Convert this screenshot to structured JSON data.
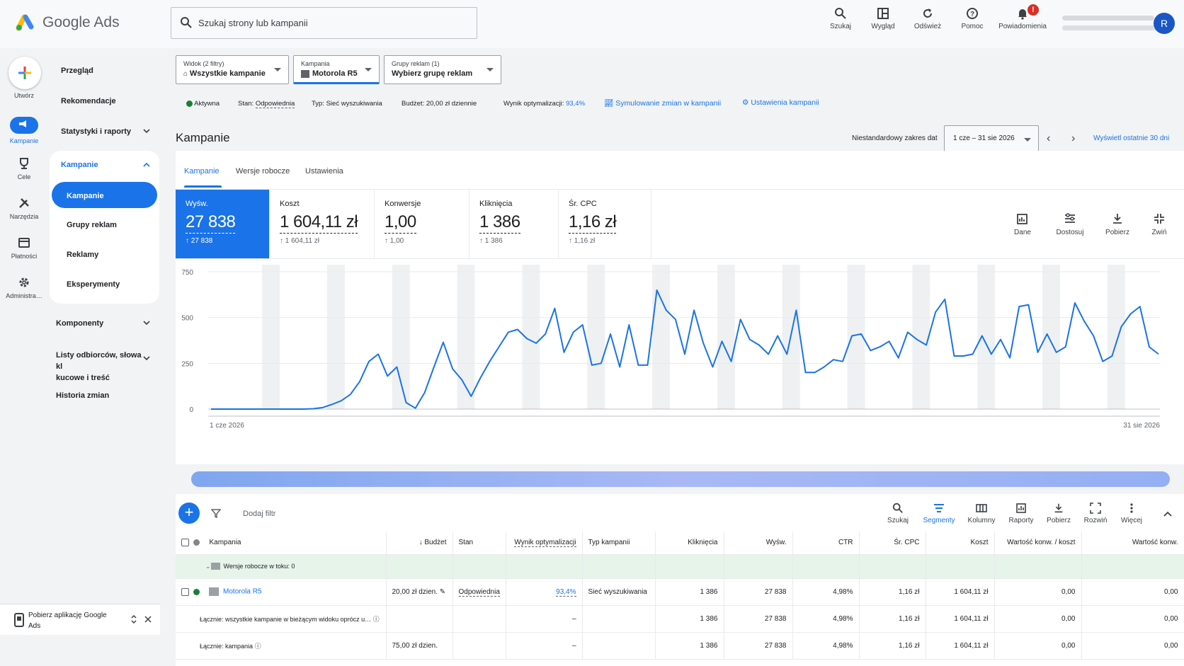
{
  "app": {
    "name": "Google Ads",
    "account_initial": "R"
  },
  "search": {
    "placeholder": "Szukaj strony lub kampanii"
  },
  "top_actions": [
    {
      "label": "Szukaj",
      "icon": "search-icon"
    },
    {
      "label": "Wygląd",
      "icon": "appearance-icon"
    },
    {
      "label": "Odśwież",
      "icon": "refresh-icon"
    },
    {
      "label": "Pomoc",
      "icon": "help-icon"
    },
    {
      "label": "Powiadomienia",
      "icon": "bell-icon",
      "badge": "!"
    }
  ],
  "rail": [
    {
      "label": "Utwórz",
      "icon": "plus-icon"
    },
    {
      "label": "Kampanie",
      "icon": "campaigns-icon"
    },
    {
      "label": "Cele",
      "icon": "trophy-icon"
    },
    {
      "label": "Narzędzia",
      "icon": "tools-icon"
    },
    {
      "label": "Płatności",
      "icon": "card-icon"
    },
    {
      "label": "Administra…",
      "icon": "gear-icon"
    }
  ],
  "nav": {
    "overview": "Przegląd",
    "recommendations": "Rekomendacje",
    "stats": "Statystyki i raporty",
    "campaigns_group": "Kampanie",
    "campaigns": "Kampanie",
    "ad_groups": "Grupy reklam",
    "ads": "Reklamy",
    "experiments": "Eksperymenty",
    "components": "Komponenty",
    "audiences_line1": "Listy odbiorców, słowa kl",
    "audiences_line2": "kucowe i treść",
    "history": "Historia zmian",
    "app_line1": "Pobierz aplikację Google",
    "app_line2": "Ads"
  },
  "filters": {
    "view_label": "Widok (2 filtry)",
    "view_value": "Wszystkie kampanie",
    "campaign_label": "Kampania",
    "campaign_value": "Motorola R5",
    "adgroup_label": "Grupy reklam (1)",
    "adgroup_value": "Wybierz grupę reklam"
  },
  "status": {
    "active": "Aktywna",
    "state_label": "Stan:",
    "state_value": "Odpowiednia",
    "type": "Typ: Sieć wyszukiwania",
    "budget": "Budżet: 20,00 zł dziennie",
    "opt_label": "Wynik optymalizacji:",
    "opt_value": "93,4%",
    "simulate": "Symulowanie zmian w kampanii",
    "settings": "Ustawienia kampanii"
  },
  "page": {
    "title": "Kampanie",
    "date_label": "Niestandardowy zakres dat",
    "date_value": "1 cze – 31 sie 2026",
    "last30": "Wyświetl ostatnie 30 dni"
  },
  "tabs": [
    "Kampanie",
    "Wersje robocze",
    "Ustawienia"
  ],
  "metrics": [
    {
      "label": "Wyśw.",
      "value": "27 838",
      "delta": "↑ 27 838",
      "selected": true
    },
    {
      "label": "Koszt",
      "value": "1 604,11 zł",
      "delta": "↑ 1 604,11 zł",
      "selected": false
    },
    {
      "label": "Konwersje",
      "value": "1,00",
      "delta": "↑ 1,00",
      "selected": false
    },
    {
      "label": "Kliknięcia",
      "value": "1 386",
      "delta": "↑ 1 386",
      "selected": false
    },
    {
      "label": "Śr. CPC",
      "value": "1,16 zł",
      "delta": "↑ 1,16 zł",
      "selected": false
    }
  ],
  "chart_tools": [
    {
      "label": "Dane",
      "icon": "chart-add-icon"
    },
    {
      "label": "Dostosuj",
      "icon": "tune-icon"
    },
    {
      "label": "Pobierz",
      "icon": "download-icon"
    },
    {
      "label": "Zwiń",
      "icon": "collapse-icon"
    }
  ],
  "chart_data": {
    "type": "line",
    "series": [
      {
        "name": "Wyśw.",
        "color": "#1a73e8",
        "values": [
          0,
          0,
          0,
          0,
          0,
          0,
          0,
          0,
          0,
          0,
          0,
          2,
          8,
          25,
          45,
          80,
          150,
          260,
          300,
          180,
          230,
          35,
          5,
          90,
          230,
          365,
          220,
          160,
          70,
          170,
          260,
          340,
          420,
          435,
          385,
          360,
          410,
          550,
          310,
          420,
          460,
          240,
          250,
          410,
          230,
          460,
          240,
          240,
          650,
          540,
          490,
          300,
          540,
          360,
          230,
          370,
          260,
          490,
          380,
          350,
          300,
          400,
          300,
          540,
          200,
          200,
          230,
          270,
          260,
          400,
          410,
          320,
          340,
          370,
          280,
          420,
          380,
          350,
          530,
          600,
          290,
          290,
          300,
          400,
          300,
          380,
          280,
          560,
          570,
          310,
          410,
          310,
          340,
          580,
          480,
          400,
          260,
          290,
          450,
          520,
          560,
          340,
          300
        ]
      }
    ],
    "x_start_label": "1 cze 2026",
    "x_end_label": "31 sie 2026",
    "y_ticks": [
      0,
      250,
      500,
      750
    ],
    "ylim": [
      0,
      750
    ],
    "grid": true,
    "weekend_bands": true
  },
  "table_toolbar": {
    "add_filter": "Dodaj filtr",
    "tools": [
      {
        "label": "Szukaj",
        "icon": "search-icon",
        "active": false
      },
      {
        "label": "Segmenty",
        "icon": "segments-icon",
        "active": true
      },
      {
        "label": "Kolumny",
        "icon": "columns-icon",
        "active": false
      },
      {
        "label": "Raporty",
        "icon": "reports-icon",
        "active": false
      },
      {
        "label": "Pobierz",
        "icon": "download-icon",
        "active": false
      },
      {
        "label": "Rozwiń",
        "icon": "expand-icon",
        "active": false
      },
      {
        "label": "Więcej",
        "icon": "more-icon",
        "active": false
      }
    ]
  },
  "table": {
    "headers": [
      "Kampania",
      "↓ Budżet",
      "Stan",
      "Wynik optymalizacji",
      "Typ kampanii",
      "Kliknięcia",
      "Wyśw.",
      "CTR",
      "Śr. CPC",
      "Koszt",
      "Wartość konw. / koszt",
      "Wartość konw."
    ],
    "draft_row": "Wersje robocze w toku: 0",
    "campaign_row": {
      "name": "Motorola R5",
      "budget": "20,00 zł dzien.",
      "state": "Odpowiednia",
      "opt": "93,4%",
      "type": "Sieć wyszukiwania",
      "clicks": "1 386",
      "impr": "27 838",
      "ctr": "4,98%",
      "cpc": "1,16 zł",
      "cost": "1 604,11 zł",
      "conv_cost": "0,00",
      "conv_value": "0,00"
    },
    "total_rows": [
      {
        "label": "Łącznie: wszystkie kampanie w bieżącym widoku oprócz u…",
        "budget": "",
        "opt": "–",
        "clicks": "1 386",
        "impr": "27 838",
        "ctr": "4,98%",
        "cpc": "1,16 zł",
        "cost": "1 604,11 zł",
        "conv_cost": "0,00",
        "conv_value": "0,00"
      },
      {
        "label": "Łącznie: kampania",
        "budget": "75,00 zł dzien.",
        "opt": "–",
        "clicks": "1 386",
        "impr": "27 838",
        "ctr": "4,98%",
        "cpc": "1,16 zł",
        "cost": "1 604,11 zł",
        "conv_cost": "0,00",
        "conv_value": "0,00"
      }
    ]
  }
}
